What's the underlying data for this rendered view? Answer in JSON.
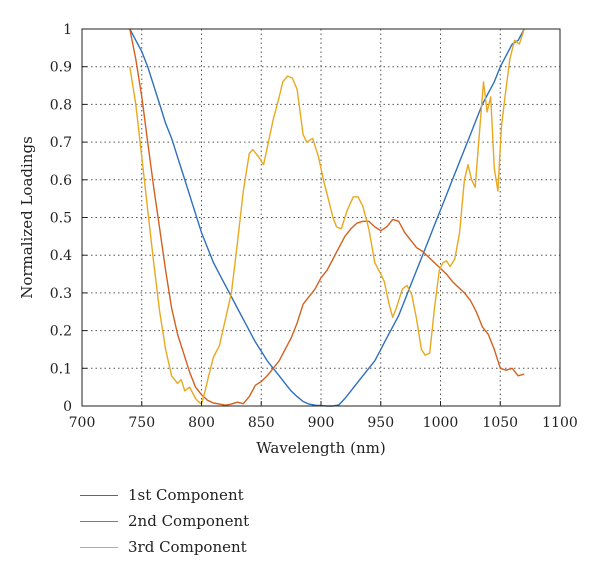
{
  "chart_data": {
    "type": "line",
    "title": "",
    "xlabel": "Wavelength (nm)",
    "ylabel": "Normalized Loadings",
    "xlim": [
      700,
      1100
    ],
    "ylim": [
      0,
      1
    ],
    "xticks": [
      700,
      750,
      800,
      850,
      900,
      950,
      1000,
      1050,
      1100
    ],
    "yticks": [
      0,
      0.1,
      0.2,
      0.3,
      0.4,
      0.5,
      0.6,
      0.7,
      0.8,
      0.9,
      1
    ],
    "xtick_labels": [
      "700",
      "750",
      "800",
      "850",
      "900",
      "950",
      "1000",
      "1050",
      "1100"
    ],
    "ytick_labels": [
      "0",
      "0.1",
      "0.2",
      "0.3",
      "0.4",
      "0.5",
      "0.6",
      "0.7",
      "0.8",
      "0.9",
      "1"
    ],
    "grid": true,
    "legend_position": "bottom-left",
    "series": [
      {
        "name": "1st Component",
        "color": "#2e6fbf",
        "points": [
          [
            740,
            1.0
          ],
          [
            745,
            0.97
          ],
          [
            750,
            0.94
          ],
          [
            755,
            0.9
          ],
          [
            760,
            0.85
          ],
          [
            765,
            0.8
          ],
          [
            770,
            0.75
          ],
          [
            775,
            0.71
          ],
          [
            780,
            0.66
          ],
          [
            785,
            0.61
          ],
          [
            790,
            0.56
          ],
          [
            795,
            0.51
          ],
          [
            800,
            0.46
          ],
          [
            805,
            0.42
          ],
          [
            810,
            0.38
          ],
          [
            815,
            0.35
          ],
          [
            820,
            0.32
          ],
          [
            825,
            0.29
          ],
          [
            830,
            0.26
          ],
          [
            835,
            0.23
          ],
          [
            840,
            0.2
          ],
          [
            845,
            0.17
          ],
          [
            850,
            0.145
          ],
          [
            855,
            0.12
          ],
          [
            860,
            0.1
          ],
          [
            865,
            0.08
          ],
          [
            870,
            0.06
          ],
          [
            875,
            0.04
          ],
          [
            880,
            0.025
          ],
          [
            885,
            0.012
          ],
          [
            890,
            0.005
          ],
          [
            895,
            0.002
          ],
          [
            900,
            0.001
          ],
          [
            905,
            0.0
          ],
          [
            910,
            0.0
          ],
          [
            915,
            0.003
          ],
          [
            920,
            0.02
          ],
          [
            925,
            0.04
          ],
          [
            930,
            0.06
          ],
          [
            935,
            0.08
          ],
          [
            940,
            0.1
          ],
          [
            945,
            0.12
          ],
          [
            950,
            0.15
          ],
          [
            955,
            0.18
          ],
          [
            960,
            0.21
          ],
          [
            965,
            0.24
          ],
          [
            970,
            0.28
          ],
          [
            975,
            0.32
          ],
          [
            980,
            0.36
          ],
          [
            985,
            0.4
          ],
          [
            990,
            0.44
          ],
          [
            995,
            0.48
          ],
          [
            1000,
            0.52
          ],
          [
            1005,
            0.56
          ],
          [
            1010,
            0.6
          ],
          [
            1015,
            0.64
          ],
          [
            1020,
            0.68
          ],
          [
            1025,
            0.72
          ],
          [
            1030,
            0.76
          ],
          [
            1035,
            0.8
          ],
          [
            1040,
            0.83
          ],
          [
            1045,
            0.86
          ],
          [
            1050,
            0.9
          ],
          [
            1055,
            0.93
          ],
          [
            1060,
            0.96
          ],
          [
            1065,
            0.97
          ],
          [
            1070,
            1.0
          ]
        ]
      },
      {
        "name": "2nd Component",
        "color": "#d4601e",
        "points": [
          [
            740,
            1.0
          ],
          [
            745,
            0.92
          ],
          [
            750,
            0.82
          ],
          [
            755,
            0.7
          ],
          [
            760,
            0.58
          ],
          [
            765,
            0.47
          ],
          [
            770,
            0.36
          ],
          [
            775,
            0.26
          ],
          [
            780,
            0.19
          ],
          [
            785,
            0.14
          ],
          [
            790,
            0.09
          ],
          [
            795,
            0.05
          ],
          [
            800,
            0.03
          ],
          [
            805,
            0.015
          ],
          [
            810,
            0.008
          ],
          [
            815,
            0.005
          ],
          [
            820,
            0.002
          ],
          [
            825,
            0.005
          ],
          [
            830,
            0.01
          ],
          [
            835,
            0.006
          ],
          [
            840,
            0.025
          ],
          [
            845,
            0.055
          ],
          [
            850,
            0.065
          ],
          [
            855,
            0.08
          ],
          [
            860,
            0.1
          ],
          [
            865,
            0.12
          ],
          [
            870,
            0.15
          ],
          [
            875,
            0.18
          ],
          [
            880,
            0.22
          ],
          [
            885,
            0.27
          ],
          [
            890,
            0.29
          ],
          [
            895,
            0.31
          ],
          [
            900,
            0.34
          ],
          [
            905,
            0.36
          ],
          [
            910,
            0.39
          ],
          [
            915,
            0.42
          ],
          [
            920,
            0.45
          ],
          [
            925,
            0.47
          ],
          [
            930,
            0.485
          ],
          [
            935,
            0.49
          ],
          [
            940,
            0.49
          ],
          [
            945,
            0.475
          ],
          [
            950,
            0.465
          ],
          [
            955,
            0.475
          ],
          [
            960,
            0.495
          ],
          [
            965,
            0.49
          ],
          [
            970,
            0.46
          ],
          [
            975,
            0.44
          ],
          [
            980,
            0.42
          ],
          [
            985,
            0.41
          ],
          [
            990,
            0.395
          ],
          [
            995,
            0.38
          ],
          [
            1000,
            0.365
          ],
          [
            1005,
            0.35
          ],
          [
            1010,
            0.33
          ],
          [
            1015,
            0.315
          ],
          [
            1020,
            0.3
          ],
          [
            1025,
            0.28
          ],
          [
            1030,
            0.25
          ],
          [
            1035,
            0.21
          ],
          [
            1040,
            0.19
          ],
          [
            1045,
            0.15
          ],
          [
            1050,
            0.1
          ],
          [
            1055,
            0.095
          ],
          [
            1060,
            0.1
          ],
          [
            1065,
            0.08
          ],
          [
            1070,
            0.085
          ]
        ]
      },
      {
        "name": "3rd Component",
        "color": "#e8a820",
        "points": [
          [
            740,
            0.9
          ],
          [
            745,
            0.8
          ],
          [
            750,
            0.66
          ],
          [
            755,
            0.52
          ],
          [
            760,
            0.38
          ],
          [
            765,
            0.25
          ],
          [
            770,
            0.15
          ],
          [
            775,
            0.08
          ],
          [
            780,
            0.06
          ],
          [
            783,
            0.07
          ],
          [
            786,
            0.04
          ],
          [
            790,
            0.05
          ],
          [
            795,
            0.02
          ],
          [
            798,
            0.01
          ],
          [
            800,
            0.005
          ],
          [
            803,
            0.04
          ],
          [
            806,
            0.08
          ],
          [
            810,
            0.13
          ],
          [
            815,
            0.16
          ],
          [
            820,
            0.23
          ],
          [
            825,
            0.3
          ],
          [
            830,
            0.43
          ],
          [
            835,
            0.57
          ],
          [
            840,
            0.67
          ],
          [
            843,
            0.68
          ],
          [
            848,
            0.66
          ],
          [
            852,
            0.64
          ],
          [
            856,
            0.7
          ],
          [
            860,
            0.76
          ],
          [
            865,
            0.82
          ],
          [
            868,
            0.86
          ],
          [
            872,
            0.875
          ],
          [
            876,
            0.87
          ],
          [
            880,
            0.84
          ],
          [
            885,
            0.72
          ],
          [
            888,
            0.7
          ],
          [
            893,
            0.71
          ],
          [
            898,
            0.66
          ],
          [
            902,
            0.6
          ],
          [
            906,
            0.55
          ],
          [
            910,
            0.5
          ],
          [
            913,
            0.475
          ],
          [
            917,
            0.47
          ],
          [
            922,
            0.52
          ],
          [
            927,
            0.555
          ],
          [
            931,
            0.555
          ],
          [
            935,
            0.53
          ],
          [
            940,
            0.47
          ],
          [
            945,
            0.38
          ],
          [
            950,
            0.35
          ],
          [
            953,
            0.33
          ],
          [
            957,
            0.27
          ],
          [
            960,
            0.235
          ],
          [
            963,
            0.26
          ],
          [
            968,
            0.31
          ],
          [
            972,
            0.32
          ],
          [
            976,
            0.295
          ],
          [
            980,
            0.23
          ],
          [
            984,
            0.15
          ],
          [
            987,
            0.135
          ],
          [
            991,
            0.14
          ],
          [
            995,
            0.26
          ],
          [
            999,
            0.36
          ],
          [
            1002,
            0.38
          ],
          [
            1005,
            0.385
          ],
          [
            1008,
            0.37
          ],
          [
            1012,
            0.39
          ],
          [
            1016,
            0.46
          ],
          [
            1020,
            0.6
          ],
          [
            1023,
            0.64
          ],
          [
            1026,
            0.6
          ],
          [
            1029,
            0.58
          ],
          [
            1032,
            0.7
          ],
          [
            1036,
            0.86
          ],
          [
            1039,
            0.78
          ],
          [
            1042,
            0.82
          ],
          [
            1045,
            0.63
          ],
          [
            1048,
            0.57
          ],
          [
            1051,
            0.74
          ],
          [
            1054,
            0.82
          ],
          [
            1058,
            0.92
          ],
          [
            1062,
            0.97
          ],
          [
            1066,
            0.96
          ],
          [
            1070,
            1.0
          ]
        ]
      }
    ]
  }
}
